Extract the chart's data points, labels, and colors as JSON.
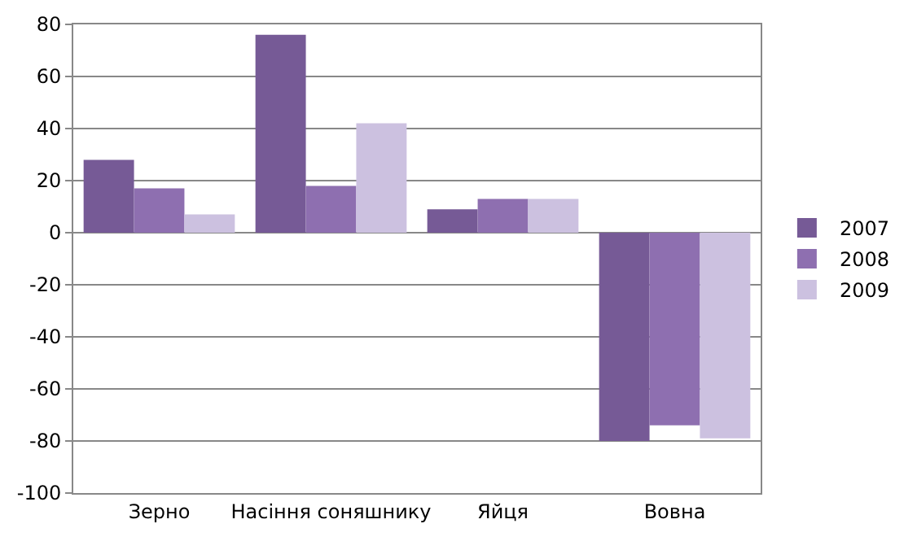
{
  "chart_data": {
    "type": "bar",
    "categories": [
      "Зерно",
      "Насіння соняшнику",
      "Яйця",
      "Вовна"
    ],
    "series": [
      {
        "name": "2007",
        "color": "#765a96",
        "values": [
          28,
          76,
          9,
          -80
        ]
      },
      {
        "name": "2008",
        "color": "#8e6fb0",
        "values": [
          17,
          18,
          13,
          -74
        ]
      },
      {
        "name": "2009",
        "color": "#ccc1e0",
        "values": [
          7,
          42,
          13,
          -79
        ]
      }
    ],
    "ylim": [
      -100,
      80
    ],
    "yticks": [
      -100,
      -80,
      -60,
      -40,
      -20,
      0,
      20,
      40,
      60,
      80
    ],
    "grid": "y",
    "legend": "right"
  }
}
